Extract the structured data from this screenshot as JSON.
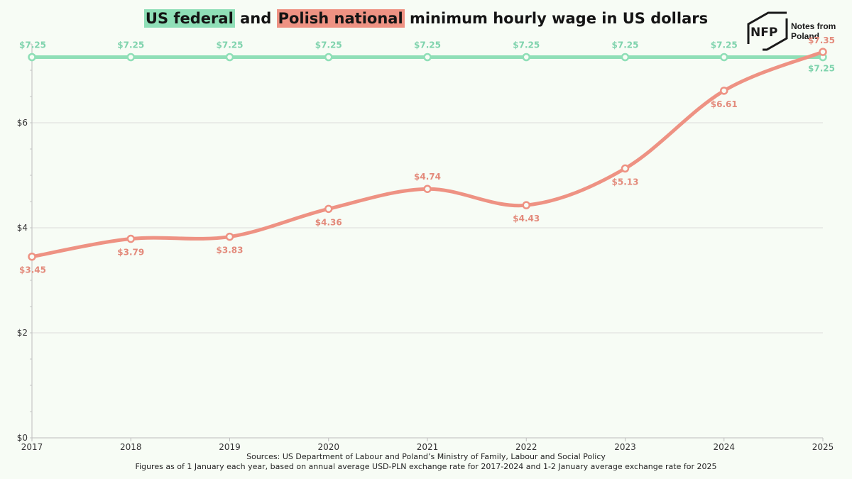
{
  "title": {
    "part1": "US federal",
    "part2": " and ",
    "part3": "Polish national",
    "part4": " minimum hourly wage in US dollars"
  },
  "logo": {
    "mark": "NFP",
    "line1": "Notes from",
    "line2": "Poland"
  },
  "footer": {
    "line1": "Sources: US Department of Labour and Poland’s Ministry of Family, Labour and Social Policy",
    "line2": "Figures as of 1 January each year, based on annual average USD-PLN exchange rate for 2017-2024 and 1-2 January average exchange rate for 2025"
  },
  "colors": {
    "us": "#8fdfb7",
    "pl": "#ee9283",
    "us_label": "#7fd3ad",
    "pl_label": "#e38a7b"
  },
  "chart_data": {
    "type": "line",
    "title": "US federal and Polish national minimum hourly wage in US dollars",
    "x": [
      2017,
      2018,
      2019,
      2020,
      2021,
      2022,
      2023,
      2024,
      2025
    ],
    "x_tick_labels": [
      "2017",
      "2018",
      "2019",
      "2020",
      "2021",
      "2022",
      "2023",
      "2024",
      "2025"
    ],
    "y_ticks": [
      0,
      2,
      4,
      6
    ],
    "y_tick_labels": [
      "$0",
      "$2",
      "$4",
      "$6"
    ],
    "ylim": [
      0,
      7.5
    ],
    "grid": "horizontal",
    "legend": "none (series identified by highlighted title words)",
    "series": [
      {
        "name": "US federal",
        "values": [
          7.25,
          7.25,
          7.25,
          7.25,
          7.25,
          7.25,
          7.25,
          7.25,
          7.25
        ],
        "labels": [
          "$7.25",
          "$7.25",
          "$7.25",
          "$7.25",
          "$7.25",
          "$7.25",
          "$7.25",
          "$7.25",
          "$7.25"
        ]
      },
      {
        "name": "Polish national",
        "values": [
          3.45,
          3.79,
          3.83,
          4.36,
          4.74,
          4.43,
          5.13,
          6.61,
          7.35
        ],
        "labels": [
          "$3.45",
          "$3.79",
          "$3.83",
          "$4.36",
          "$4.74",
          "$4.43",
          "$5.13",
          "$6.61",
          "$7.35"
        ]
      }
    ]
  }
}
